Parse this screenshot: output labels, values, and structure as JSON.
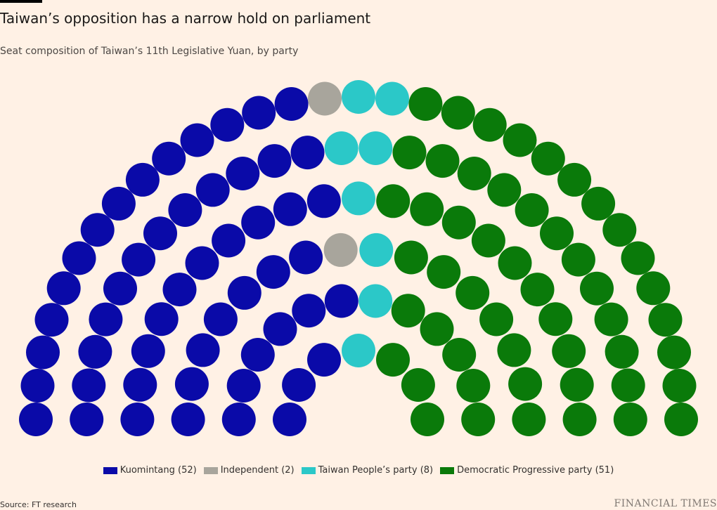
{
  "chart_data": {
    "type": "parliament",
    "title": "Taiwan’s opposition has a narrow hold on parliament",
    "subtitle": "Seat composition of Taiwan’s 11th Legislative Yuan, by party",
    "total_seats": 113,
    "rows": 6,
    "series": [
      {
        "name": "Kuomintang (52)",
        "value": 52,
        "color": "#0a0aa8"
      },
      {
        "name": "Independent (2)",
        "value": 2,
        "color": "#a8a59c"
      },
      {
        "name": "Taiwan People’s party (8)",
        "value": 8,
        "color": "#2bc8c8"
      },
      {
        "name": "Democratic Progressive party (51)",
        "value": 51,
        "color": "#0a7a0a"
      }
    ],
    "legend_placement": "bottom-center"
  },
  "footer": {
    "source": "Source: FT research",
    "logo": "FINANCIAL TIMES"
  }
}
